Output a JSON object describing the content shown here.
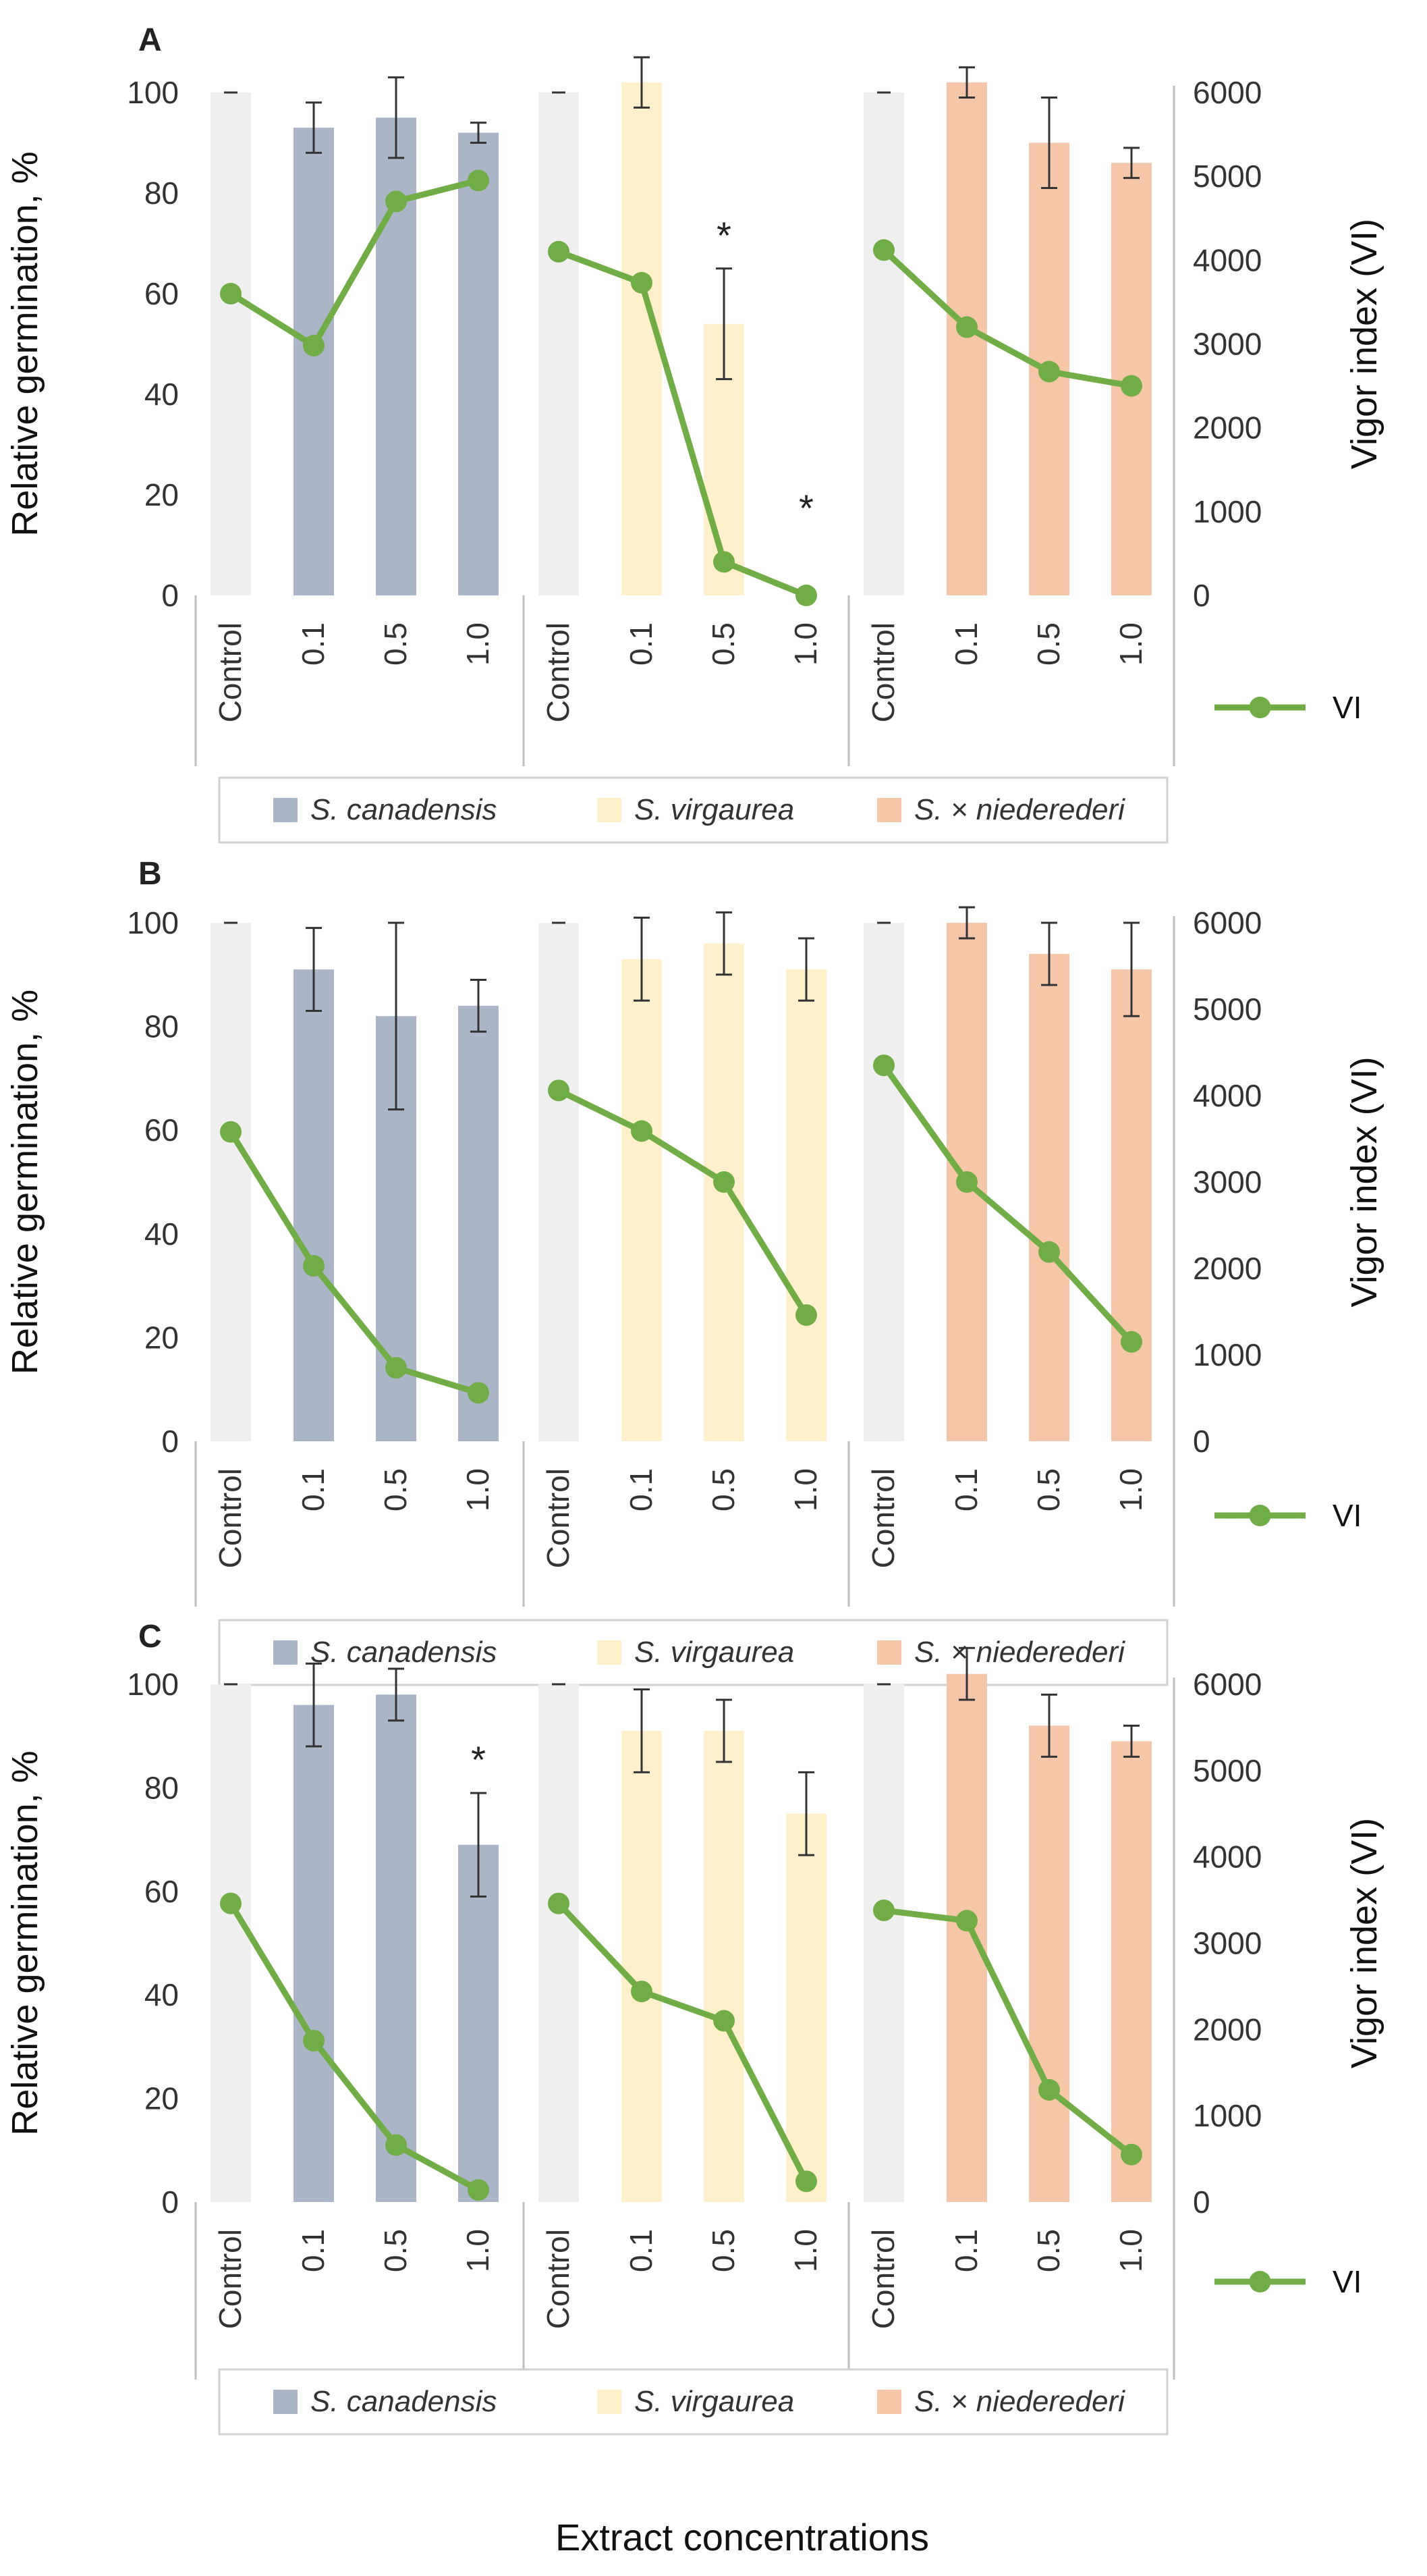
{
  "xlabel": "Extract concentrations",
  "colors": {
    "control": "#efefef",
    "S. canadensis": "#aab5c8",
    "S. virgaurea": "#fff0cc",
    "S. × niederederi": "#f6c6a8",
    "vi": "#70ad47",
    "error": "#333333",
    "grid_line": "#bfbfbf"
  },
  "legend": {
    "series": [
      "S. canadensis",
      "S. virgaurea",
      "S. × niederederi"
    ],
    "vi_label": "VI"
  },
  "chart_data": [
    {
      "type": "bar",
      "panel": "A",
      "ylabel": "Relative germination, %",
      "y2label": "Vigor index (VI)",
      "ylim": [
        0,
        100
      ],
      "y2lim": [
        0,
        6000
      ],
      "yticks": [
        "0",
        "20",
        "40",
        "60",
        "80",
        "100"
      ],
      "y2ticks": [
        "0",
        "1000",
        "2000",
        "3000",
        "4000",
        "5000",
        "6000"
      ],
      "categories": [
        "Control",
        "0.1",
        "0.5",
        "1.0"
      ],
      "series": [
        {
          "name": "S. canadensis",
          "values": [
            100,
            93,
            95,
            92
          ],
          "errors": [
            0,
            5,
            8,
            2
          ],
          "vi": [
            3600,
            2980,
            4700,
            4950
          ],
          "stars": [
            "",
            "",
            "",
            ""
          ]
        },
        {
          "name": "S. virgaurea",
          "values": [
            100,
            102,
            54,
            0
          ],
          "errors": [
            0,
            5,
            11,
            0
          ],
          "vi": [
            4100,
            3730,
            400,
            0
          ],
          "stars": [
            "",
            "",
            "*",
            "*"
          ]
        },
        {
          "name": "S. × niederederi",
          "values": [
            100,
            102,
            90,
            86
          ],
          "errors": [
            0,
            3,
            9,
            3
          ],
          "vi": [
            4120,
            3200,
            2670,
            2500
          ],
          "stars": [
            "",
            "",
            "",
            ""
          ]
        }
      ]
    },
    {
      "type": "bar",
      "panel": "B",
      "ylabel": "Relative germination, %",
      "y2label": "Vigor index (VI)",
      "ylim": [
        0,
        100
      ],
      "y2lim": [
        0,
        6000
      ],
      "yticks": [
        "0",
        "20",
        "40",
        "60",
        "80",
        "100"
      ],
      "y2ticks": [
        "0",
        "1000",
        "2000",
        "3000",
        "4000",
        "5000",
        "6000"
      ],
      "categories": [
        "Control",
        "0.1",
        "0.5",
        "1.0"
      ],
      "series": [
        {
          "name": "S. canadensis",
          "values": [
            100,
            91,
            82,
            84
          ],
          "errors": [
            0,
            8,
            18,
            5
          ],
          "vi": [
            3580,
            2030,
            850,
            560
          ],
          "stars": [
            "",
            "",
            "",
            ""
          ]
        },
        {
          "name": "S. virgaurea",
          "values": [
            100,
            93,
            96,
            91
          ],
          "errors": [
            0,
            8,
            6,
            6
          ],
          "vi": [
            4060,
            3590,
            3000,
            1460
          ],
          "stars": [
            "",
            "",
            "",
            ""
          ]
        },
        {
          "name": "S. × niederederi",
          "values": [
            100,
            100,
            94,
            91
          ],
          "errors": [
            0,
            3,
            6,
            9
          ],
          "vi": [
            4350,
            3000,
            2190,
            1150
          ],
          "stars": [
            "",
            "",
            "",
            ""
          ]
        }
      ]
    },
    {
      "type": "bar",
      "panel": "C",
      "ylabel": "Relative germination, %",
      "y2label": "Vigor index (VI)",
      "ylim": [
        0,
        100
      ],
      "y2lim": [
        0,
        6000
      ],
      "yticks": [
        "0",
        "20",
        "40",
        "60",
        "80",
        "100"
      ],
      "y2ticks": [
        "0",
        "1000",
        "2000",
        "3000",
        "4000",
        "5000",
        "6000"
      ],
      "categories": [
        "Control",
        "0.1",
        "0.5",
        "1.0"
      ],
      "series": [
        {
          "name": "S. canadensis",
          "values": [
            100,
            96,
            98,
            69
          ],
          "errors": [
            0,
            8,
            5,
            10
          ],
          "vi": [
            3460,
            1870,
            660,
            140
          ],
          "stars": [
            "",
            "",
            "",
            "*"
          ]
        },
        {
          "name": "S. virgaurea",
          "values": [
            100,
            91,
            91,
            75
          ],
          "errors": [
            0,
            8,
            6,
            8
          ],
          "vi": [
            3460,
            2440,
            2100,
            240
          ],
          "stars": [
            "",
            "",
            "",
            ""
          ]
        },
        {
          "name": "S. × niederederi",
          "values": [
            100,
            102,
            92,
            89
          ],
          "errors": [
            0,
            5,
            6,
            3
          ],
          "vi": [
            3380,
            3260,
            1300,
            550
          ],
          "stars": [
            "",
            "",
            "",
            ""
          ]
        }
      ]
    }
  ]
}
